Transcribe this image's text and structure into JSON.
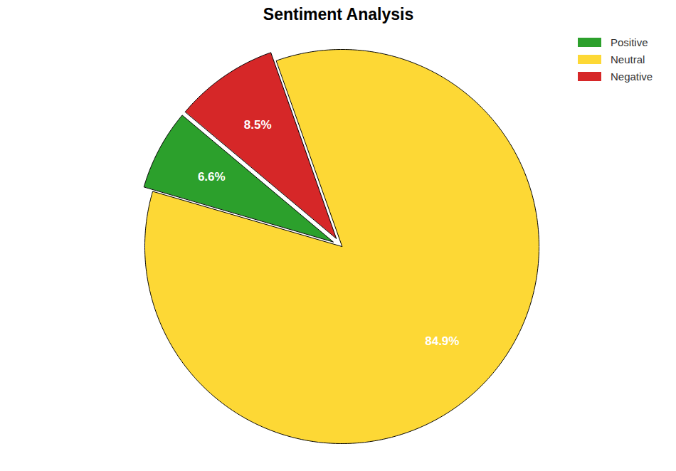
{
  "chart_data": {
    "type": "pie",
    "title": "Sentiment Analysis",
    "categories": [
      "Positive",
      "Neutral",
      "Negative"
    ],
    "values": [
      6.6,
      84.9,
      8.5
    ],
    "value_labels": [
      "6.6%",
      "84.9%",
      "8.5%"
    ],
    "colors": [
      "#2ca02c",
      "#fdd835",
      "#d62728"
    ],
    "data_labels": true,
    "legend": "upper right"
  }
}
